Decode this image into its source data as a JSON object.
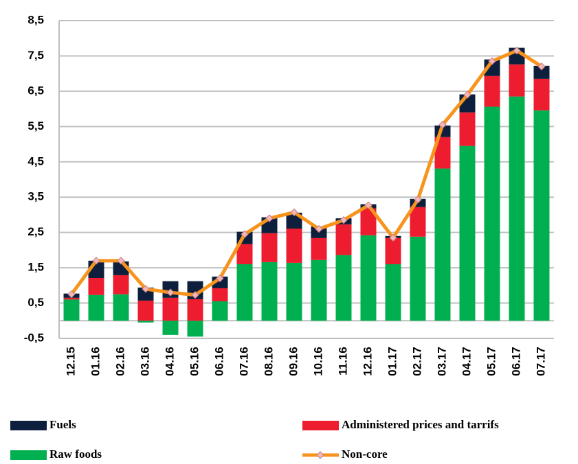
{
  "chart_data": {
    "type": "bar",
    "stacked": true,
    "categories": [
      "12.15",
      "01.16",
      "02.16",
      "03.16",
      "04.16",
      "05.16",
      "06.16",
      "07.16",
      "08.16",
      "09.16",
      "10.16",
      "11.16",
      "12.16",
      "01.17",
      "02.17",
      "03.17",
      "04.17",
      "05.17",
      "06.17",
      "07.17"
    ],
    "series": [
      {
        "name": "Fuels",
        "color": "#0d1f3c",
        "values": [
          0.12,
          0.49,
          0.39,
          0.37,
          0.47,
          0.51,
          0.33,
          0.35,
          0.45,
          0.45,
          0.33,
          0.17,
          0.12,
          0.06,
          0.23,
          0.33,
          0.51,
          0.47,
          0.47,
          0.37
        ]
      },
      {
        "name": "Administered prices and tarrifs",
        "color": "#ed1c2e",
        "values": [
          0.05,
          0.48,
          0.54,
          0.57,
          0.65,
          0.61,
          0.37,
          0.57,
          0.82,
          0.97,
          0.62,
          0.87,
          0.76,
          0.74,
          0.84,
          0.89,
          0.95,
          0.87,
          0.91,
          0.89
        ]
      },
      {
        "name": "Raw foods",
        "color": "#00b050",
        "values": [
          0.6,
          0.73,
          0.75,
          -0.05,
          -0.4,
          -0.45,
          0.55,
          1.6,
          1.66,
          1.64,
          1.72,
          1.86,
          2.42,
          1.6,
          2.38,
          4.31,
          4.95,
          6.06,
          6.35,
          5.96
        ]
      },
      {
        "name": "Non-core",
        "color": "#f7941d",
        "type": "line",
        "marker_color": "#f2b8b8",
        "values": [
          0.75,
          1.7,
          1.7,
          0.9,
          0.8,
          0.73,
          1.2,
          2.45,
          2.9,
          3.07,
          2.6,
          2.85,
          3.27,
          2.35,
          3.43,
          5.55,
          6.4,
          7.35,
          7.65,
          7.2
        ]
      }
    ],
    "ylim": [
      -0.5,
      8.5
    ],
    "yticks": [
      {
        "value": -0.5,
        "label": "-0,5"
      },
      {
        "value": 0.5,
        "label": "0,5"
      },
      {
        "value": 1.5,
        "label": "1,5"
      },
      {
        "value": 2.5,
        "label": "2,5"
      },
      {
        "value": 3.5,
        "label": "3,5"
      },
      {
        "value": 4.5,
        "label": "4,5"
      },
      {
        "value": 5.5,
        "label": "5,5"
      },
      {
        "value": 6.5,
        "label": "6,5"
      },
      {
        "value": 7.5,
        "label": "7,5"
      },
      {
        "value": 8.5,
        "label": "8,5"
      }
    ],
    "grid": true,
    "legend": "bottom"
  }
}
